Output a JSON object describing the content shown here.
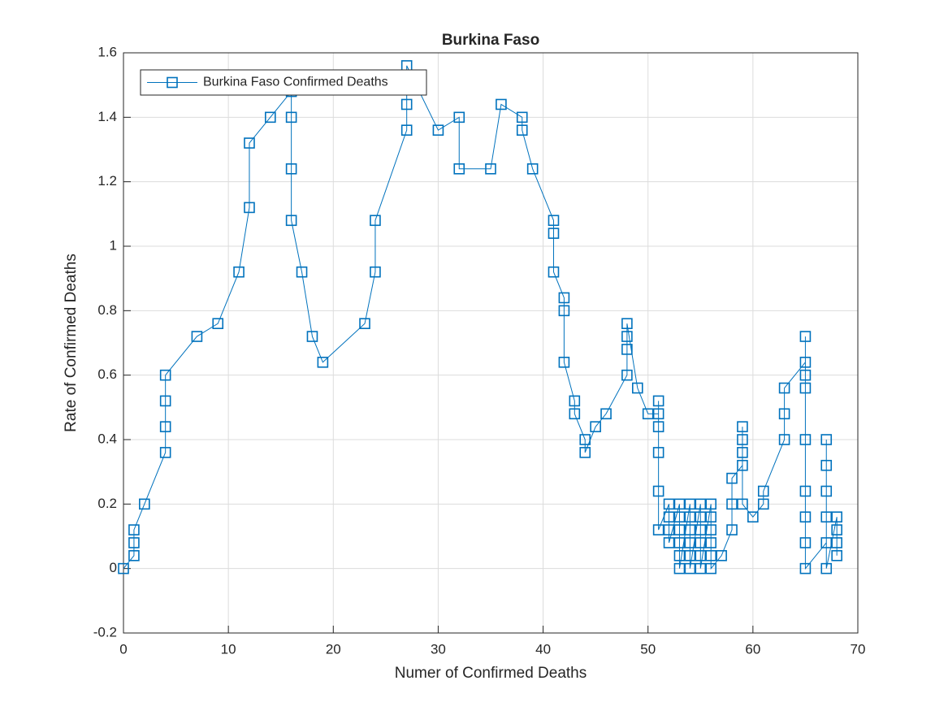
{
  "chart_data": {
    "type": "line",
    "title": "Burkina Faso",
    "xlabel": "Numer of Confirmed Deaths",
    "ylabel": "Rate of Confirmed Deaths",
    "xlim": [
      0,
      70
    ],
    "xticks": [
      0,
      10,
      20,
      30,
      40,
      50,
      60,
      70
    ],
    "ylim": [
      -0.2,
      1.6
    ],
    "yticks": [
      -0.2,
      0,
      0.2,
      0.4,
      0.6,
      0.8,
      1,
      1.2,
      1.4,
      1.6
    ],
    "grid": true,
    "legend": "upper left",
    "x": [
      0,
      1,
      1,
      1,
      2,
      4,
      4,
      4,
      4,
      7,
      9,
      11,
      12,
      12,
      14,
      16,
      16,
      16,
      16,
      17,
      18,
      19,
      23,
      24,
      24,
      27,
      27,
      27,
      30,
      32,
      32,
      35,
      36,
      38,
      38,
      39,
      41,
      41,
      41,
      42,
      42,
      42,
      43,
      43,
      44,
      44,
      45,
      46,
      48,
      48,
      48,
      48,
      49,
      50,
      51,
      51,
      51,
      51,
      51,
      51,
      52,
      52,
      52,
      52,
      53,
      53,
      53,
      53,
      53,
      53,
      54,
      54,
      54,
      54,
      54,
      54,
      55,
      55,
      55,
      55,
      55,
      55,
      56,
      56,
      56,
      56,
      56,
      56,
      57,
      58,
      58,
      58,
      59,
      59,
      59,
      59,
      59,
      60,
      61,
      61,
      63,
      63,
      63,
      65,
      65,
      65,
      65,
      65,
      65,
      65,
      65,
      65,
      67,
      67,
      67,
      67,
      67,
      67,
      68,
      68,
      68,
      68
    ],
    "series": [
      {
        "name": "Burkina Faso Confirmed Deaths",
        "color": "#0072bd",
        "values": [
          0,
          0.04,
          0.08,
          0.12,
          0.2,
          0.36,
          0.44,
          0.52,
          0.6,
          0.72,
          0.76,
          0.92,
          1.12,
          1.32,
          1.4,
          1.48,
          1.4,
          1.24,
          1.08,
          0.92,
          0.72,
          0.64,
          0.76,
          0.92,
          1.08,
          1.36,
          1.44,
          1.56,
          1.36,
          1.4,
          1.24,
          1.24,
          1.44,
          1.4,
          1.36,
          1.24,
          1.08,
          1.04,
          0.92,
          0.84,
          0.8,
          0.64,
          0.52,
          0.48,
          0.4,
          0.36,
          0.44,
          0.48,
          0.6,
          0.68,
          0.72,
          0.76,
          0.56,
          0.48,
          0.48,
          0.52,
          0.44,
          0.36,
          0.24,
          0.12,
          0.2,
          0.16,
          0.12,
          0.08,
          0.2,
          0.16,
          0.12,
          0.08,
          0.04,
          0,
          0.2,
          0.16,
          0.12,
          0.08,
          0.04,
          0,
          0.2,
          0.16,
          0.12,
          0.08,
          0.04,
          0,
          0.2,
          0.16,
          0.12,
          0.08,
          0.04,
          0,
          0.04,
          0.12,
          0.2,
          0.28,
          0.32,
          0.36,
          0.4,
          0.44,
          0.2,
          0.16,
          0.2,
          0.24,
          0.4,
          0.48,
          0.56,
          0.64,
          0.72,
          0.6,
          0.56,
          0.4,
          0.24,
          0.16,
          0.08,
          0,
          0.08,
          0.16,
          0.24,
          0.32,
          0.4,
          0,
          0.16,
          0.12,
          0.08,
          0.04
        ]
      }
    ]
  }
}
